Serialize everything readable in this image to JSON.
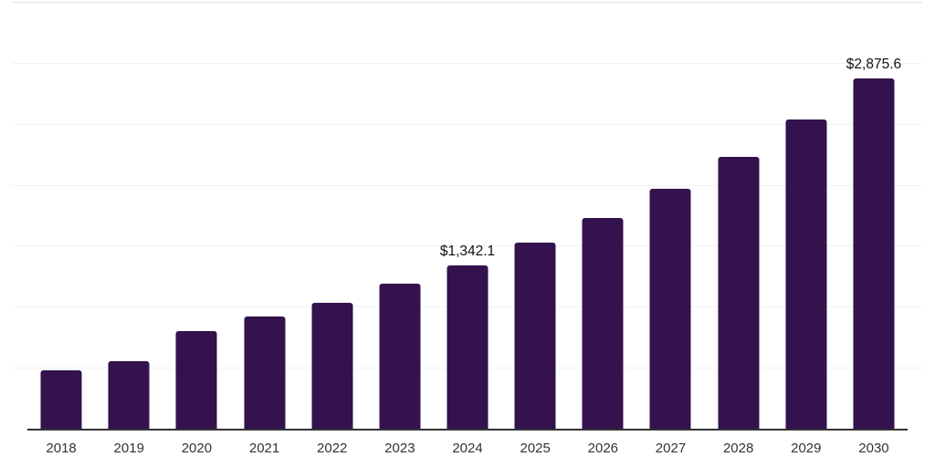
{
  "page": {
    "background": "#ffffff"
  },
  "chart_data": {
    "type": "bar",
    "title": "",
    "xlabel": "",
    "ylabel": "",
    "categories": [
      "2018",
      "2019",
      "2020",
      "2021",
      "2022",
      "2023",
      "2024",
      "2025",
      "2026",
      "2027",
      "2028",
      "2029",
      "2030"
    ],
    "values": [
      480,
      555,
      800,
      920,
      1030,
      1190,
      1342.1,
      1524,
      1731,
      1965,
      2232,
      2534,
      2875.6
    ],
    "data_labels": {
      "2024": "$1,342.1",
      "2030": "$2,875.6"
    },
    "value_prefix": "$",
    "ylim": [
      0,
      3500
    ],
    "gridline_interval": 500,
    "grid": "horizontal",
    "y_tick_labels_visible": false,
    "legend": "none",
    "bar_color": "#33124d",
    "axis_line_color": "#333333",
    "gridline_color": "#f2f2f2",
    "top_gridline_color": "#e3e3e3",
    "data_label_color": "#111111",
    "tick_label_color": "#333333"
  }
}
